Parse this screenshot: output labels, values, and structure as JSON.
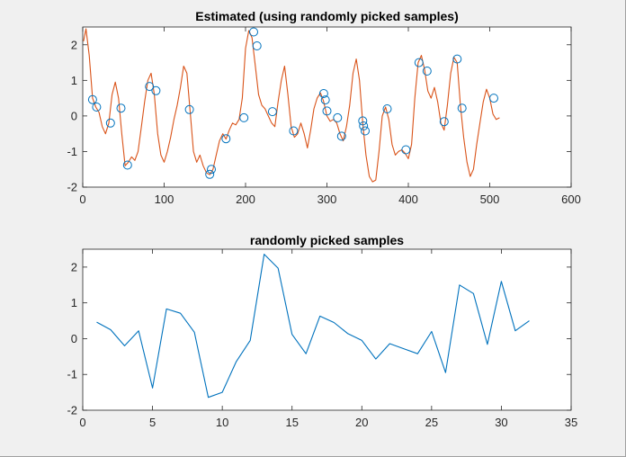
{
  "chart_data": [
    {
      "type": "line",
      "title": "Estimated (using randomly picked samples)",
      "xlabel": "",
      "ylabel": "",
      "xlim": [
        0,
        600
      ],
      "ylim": [
        -2,
        2.5
      ],
      "xticks": [
        0,
        100,
        200,
        300,
        400,
        500,
        600
      ],
      "yticks": [
        -2,
        -1,
        0,
        1,
        2
      ],
      "grid": false,
      "series": [
        {
          "kind": "line",
          "color": "#D95319",
          "x": [
            1,
            4,
            8,
            12,
            16,
            20,
            24,
            28,
            32,
            36,
            40,
            44,
            48,
            52,
            56,
            60,
            64,
            68,
            72,
            76,
            80,
            84,
            88,
            92,
            96,
            100,
            104,
            108,
            112,
            116,
            120,
            124,
            128,
            132,
            136,
            140,
            144,
            148,
            152,
            156,
            160,
            164,
            168,
            172,
            176,
            180,
            184,
            188,
            192,
            196,
            200,
            204,
            208,
            212,
            216,
            220,
            224,
            228,
            232,
            236,
            240,
            244,
            248,
            252,
            256,
            260,
            264,
            268,
            272,
            276,
            280,
            284,
            288,
            292,
            296,
            300,
            304,
            308,
            312,
            316,
            320,
            324,
            328,
            332,
            336,
            340,
            344,
            348,
            352,
            356,
            360,
            364,
            368,
            372,
            376,
            380,
            384,
            388,
            392,
            396,
            400,
            404,
            408,
            412,
            416,
            420,
            424,
            428,
            432,
            436,
            440,
            444,
            448,
            452,
            456,
            460,
            464,
            468,
            472,
            476,
            480,
            484,
            488,
            492,
            496,
            500,
            504,
            508,
            512
          ],
          "y": [
            2.1,
            2.45,
            1.7,
            0.5,
            0.25,
            0.1,
            -0.3,
            -0.5,
            -0.2,
            0.6,
            0.95,
            0.5,
            -0.5,
            -1.4,
            -1.3,
            -1.15,
            -1.25,
            -1.0,
            -0.3,
            0.4,
            1.0,
            1.2,
            0.6,
            -0.5,
            -1.1,
            -1.3,
            -1.0,
            -0.6,
            -0.1,
            0.3,
            0.8,
            1.4,
            1.2,
            0.1,
            -1.0,
            -1.3,
            -1.1,
            -1.4,
            -1.6,
            -1.65,
            -1.5,
            -1.1,
            -0.7,
            -0.5,
            -0.65,
            -0.4,
            -0.2,
            -0.25,
            -0.1,
            0.5,
            1.9,
            2.4,
            2.2,
            1.4,
            0.6,
            0.3,
            0.2,
            0.0,
            -0.2,
            -0.3,
            0.4,
            1.0,
            1.4,
            0.6,
            -0.3,
            -0.6,
            -0.5,
            -0.2,
            -0.5,
            -0.9,
            -0.4,
            0.2,
            0.5,
            0.65,
            0.4,
            0.0,
            -0.15,
            -0.1,
            -0.2,
            -0.5,
            -0.7,
            -0.3,
            0.3,
            1.2,
            1.6,
            1.0,
            -0.2,
            -1.1,
            -1.7,
            -1.85,
            -1.8,
            -1.0,
            0.0,
            0.25,
            -0.1,
            -0.8,
            -1.1,
            -1.0,
            -0.95,
            -1.05,
            -1.2,
            -0.8,
            0.5,
            1.5,
            1.7,
            1.3,
            0.7,
            0.5,
            0.8,
            0.4,
            -0.2,
            -0.4,
            0.3,
            1.2,
            1.65,
            1.5,
            0.3,
            -0.6,
            -1.3,
            -1.7,
            -1.5,
            -0.8,
            -0.2,
            0.4,
            0.75,
            0.5,
            0.05,
            -0.1,
            -0.05
          ]
        },
        {
          "kind": "markers",
          "marker": "circle",
          "color": "#0072BD",
          "x": [
            12,
            17,
            34,
            47,
            55,
            82,
            90,
            131,
            156,
            158,
            176,
            198,
            210,
            214,
            233,
            259,
            296,
            298,
            300,
            313,
            318,
            344,
            345,
            347,
            374,
            397,
            413,
            423,
            444,
            460,
            466,
            505
          ],
          "y": [
            0.46,
            0.25,
            -0.2,
            0.22,
            -1.38,
            0.83,
            0.71,
            0.18,
            -1.64,
            -1.5,
            -0.64,
            -0.05,
            2.36,
            1.97,
            0.12,
            -0.42,
            0.63,
            0.45,
            0.14,
            -0.05,
            -0.57,
            -0.14,
            -0.28,
            -0.42,
            0.2,
            -0.95,
            1.5,
            1.26,
            -0.16,
            1.6,
            0.22,
            0.5
          ]
        }
      ]
    },
    {
      "type": "line",
      "title": "randomly picked samples",
      "xlabel": "",
      "ylabel": "",
      "xlim": [
        0,
        35
      ],
      "ylim": [
        -2,
        2.5
      ],
      "xticks": [
        0,
        5,
        10,
        15,
        20,
        25,
        30,
        35
      ],
      "yticks": [
        -2,
        -1,
        0,
        1,
        2
      ],
      "grid": false,
      "series": [
        {
          "kind": "line",
          "color": "#0072BD",
          "x": [
            1,
            2,
            3,
            4,
            5,
            6,
            7,
            8,
            9,
            10,
            11,
            12,
            13,
            14,
            15,
            16,
            17,
            18,
            19,
            20,
            21,
            22,
            23,
            24,
            25,
            26,
            27,
            28,
            29,
            30,
            31,
            32
          ],
          "y": [
            0.46,
            0.25,
            -0.2,
            0.22,
            -1.38,
            0.83,
            0.71,
            0.18,
            -1.64,
            -1.5,
            -0.64,
            -0.05,
            2.36,
            1.97,
            0.12,
            -0.42,
            0.63,
            0.45,
            0.14,
            -0.05,
            -0.57,
            -0.14,
            -0.28,
            -0.42,
            0.2,
            -0.95,
            1.5,
            1.26,
            -0.16,
            1.6,
            0.22,
            0.5
          ]
        }
      ]
    }
  ]
}
